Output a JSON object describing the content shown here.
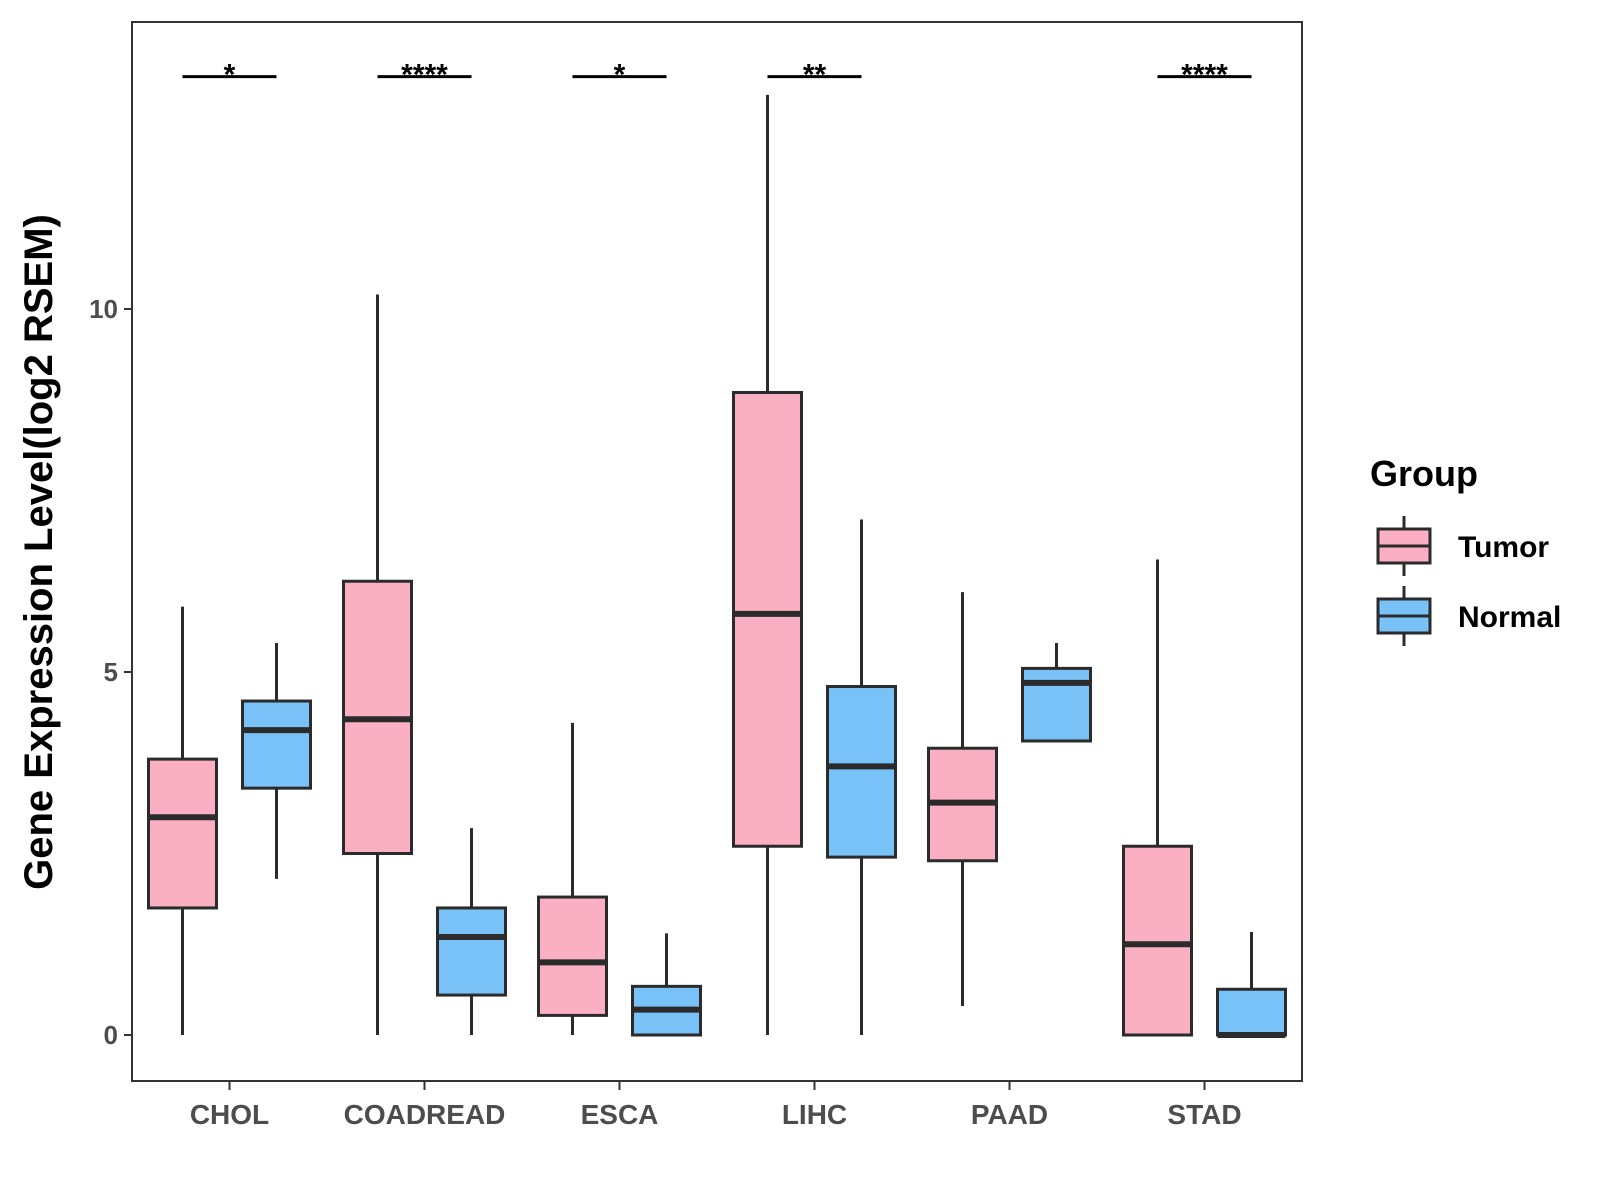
{
  "chart_data": {
    "type": "boxplot",
    "ylabel": "Gene Expression Level(log2 RSEM)",
    "xlabel": "",
    "ylim": [
      -0.65,
      13.95
    ],
    "yticks": [
      0,
      5,
      10
    ],
    "categories": [
      "CHOL",
      "COADREAD",
      "ESCA",
      "LIHC",
      "PAAD",
      "STAD"
    ],
    "series": [
      {
        "name": "Tumor",
        "color": "#FBAFC2",
        "boxes": [
          {
            "category": "CHOL",
            "min": 0.0,
            "q1": 1.75,
            "median": 3.0,
            "q3": 3.8,
            "max": 5.9
          },
          {
            "category": "COADREAD",
            "min": 0.0,
            "q1": 2.5,
            "median": 4.35,
            "q3": 6.25,
            "max": 10.2
          },
          {
            "category": "ESCA",
            "min": 0.0,
            "q1": 0.27,
            "median": 1.0,
            "q3": 1.9,
            "max": 4.3
          },
          {
            "category": "LIHC",
            "min": 0.0,
            "q1": 2.6,
            "median": 5.8,
            "q3": 8.85,
            "max": 12.95
          },
          {
            "category": "PAAD",
            "min": 0.4,
            "q1": 2.4,
            "median": 3.2,
            "q3": 3.95,
            "max": 6.1
          },
          {
            "category": "STAD",
            "min": 0.0,
            "q1": 0.0,
            "median": 1.25,
            "q3": 2.6,
            "max": 6.55
          }
        ]
      },
      {
        "name": "Normal",
        "color": "#79C2F7",
        "boxes": [
          {
            "category": "CHOL",
            "min": 2.15,
            "q1": 3.4,
            "median": 4.2,
            "q3": 4.6,
            "max": 5.4
          },
          {
            "category": "COADREAD",
            "min": 0.0,
            "q1": 0.55,
            "median": 1.35,
            "q3": 1.75,
            "max": 2.85
          },
          {
            "category": "ESCA",
            "min": 0.0,
            "q1": 0.0,
            "median": 0.35,
            "q3": 0.67,
            "max": 1.4
          },
          {
            "category": "LIHC",
            "min": 0.0,
            "q1": 2.45,
            "median": 3.7,
            "q3": 4.8,
            "max": 7.1
          },
          {
            "category": "PAAD",
            "min": 4.05,
            "q1": 4.05,
            "median": 4.85,
            "q3": 5.05,
            "max": 5.4
          },
          {
            "category": "STAD",
            "min": 0.0,
            "q1": 0.0,
            "median": 0.0,
            "q3": 0.63,
            "max": 1.42
          }
        ]
      }
    ],
    "significance": [
      {
        "category": "CHOL",
        "label": "*"
      },
      {
        "category": "COADREAD",
        "label": "****"
      },
      {
        "category": "ESCA",
        "label": "*"
      },
      {
        "category": "LIHC",
        "label": "**"
      },
      {
        "category": "STAD",
        "label": "****"
      }
    ],
    "significance_level": 13.2,
    "legend": {
      "title": "Group",
      "position": "right",
      "items": [
        {
          "label": "Tumor",
          "color": "#FBAFC2"
        },
        {
          "label": "Normal",
          "color": "#79C2F7"
        }
      ]
    }
  }
}
